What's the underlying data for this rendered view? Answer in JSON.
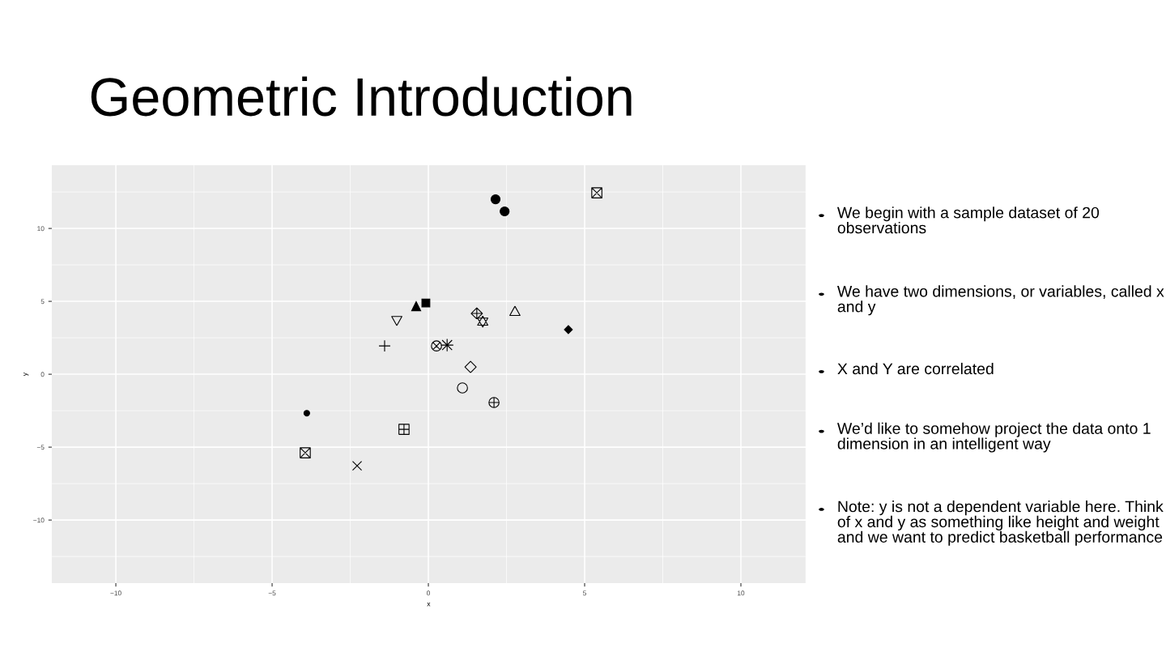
{
  "chart_data": {
    "type": "scatter",
    "title": "Geometric Introduction",
    "xlabel": "x",
    "ylabel": "y",
    "xlim": [
      -12.05,
      12.07
    ],
    "ylim": [
      -14.33,
      14.33
    ],
    "xticks": [
      {
        "value": -10,
        "label": "−10"
      },
      {
        "value": -5,
        "label": "−5"
      },
      0,
      5,
      10
    ],
    "yticks": [
      {
        "value": -10,
        "label": "−10"
      },
      {
        "value": -5,
        "label": "−5"
      },
      0,
      5,
      10
    ],
    "grid": true,
    "series": [
      {
        "color": "#000000",
        "x": [
          2.15,
          2.44,
          5.39,
          -0.39,
          -0.08,
          -1.01,
          1.55,
          1.74,
          2.77,
          4.48,
          -1.4,
          0.26,
          0.6,
          1.35,
          1.09,
          2.1,
          -3.89,
          -0.78,
          -3.94,
          -2.28
        ],
        "values": [
          12.0,
          11.17,
          12.44,
          4.67,
          4.89,
          3.72,
          4.17,
          3.61,
          4.28,
          3.06,
          1.94,
          1.94,
          2.0,
          0.5,
          -0.94,
          -1.94,
          -2.67,
          -3.78,
          -5.39,
          -6.28
        ]
      }
    ],
    "annotations": [
      "We begin with a sample dataset of 20 observations",
      "We have two dimensions, or variables, called x and y",
      "X and Y are correlated",
      "We’d like to somehow project the data onto 1 dimension in an intelligent way",
      "Note: y is not a dependent variable here. Think of x and y as something like height and weight and we want to predict basketball performance"
    ]
  }
}
